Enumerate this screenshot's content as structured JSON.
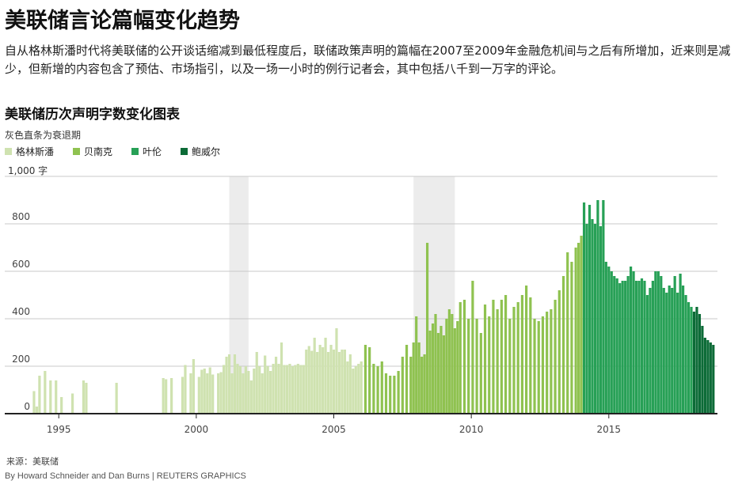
{
  "page": {
    "title": "美联储言论篇幅变化趋势",
    "description": "自从格林斯潘时代将美联储的公开谈话缩减到最低程度后，联储政策声明的篇幅在2007至2009年金融危机间与之后有所增加，近来则是减少，但新增的内容包含了预估、市场指引，以及一场一小时的例行记者会，其中包括八千到一万字的评论。",
    "source": "来源：美联储",
    "credit": "By Howard Schneider and Dan Burns | REUTERS GRAPHICS"
  },
  "chart_data": {
    "type": "bar",
    "title": "美联储历次声明字数变化图表",
    "recession_note": "灰色直条为衰退期",
    "unit_label": "1,000 字",
    "xlabel": "",
    "ylabel": "",
    "xlim": [
      1993.9,
      2018.95
    ],
    "ylim": [
      0,
      1000
    ],
    "y_ticks": [
      0,
      200,
      400,
      600,
      800
    ],
    "x_ticks": [
      1995,
      2000,
      2005,
      2010,
      2015
    ],
    "grid": true,
    "legend_position": "top-left",
    "recessions": [
      [
        2001.2,
        2001.9
      ],
      [
        2007.9,
        2009.4
      ]
    ],
    "series": [
      {
        "name": "格林斯潘",
        "color": "#cfe2b0",
        "x": [
          1994.1,
          1994.2,
          1994.3,
          1994.5,
          1994.7,
          1994.9,
          1995.1,
          1995.5,
          1995.9,
          1996.0,
          1997.1,
          1998.8,
          1998.9,
          1999.1,
          1999.5,
          1999.6,
          1999.8,
          1999.9,
          2000.1,
          2000.2,
          2000.3,
          2000.4,
          2000.5,
          2000.6,
          2000.8,
          2000.9,
          2001.0,
          2001.1,
          2001.2,
          2001.3,
          2001.4,
          2001.5,
          2001.6,
          2001.7,
          2001.8,
          2001.9,
          2002.0,
          2002.1,
          2002.2,
          2002.3,
          2002.4,
          2002.5,
          2002.6,
          2002.7,
          2002.8,
          2002.9,
          2003.0,
          2003.1,
          2003.2,
          2003.3,
          2003.4,
          2003.5,
          2003.6,
          2003.7,
          2003.8,
          2003.9,
          2004.0,
          2004.1,
          2004.2,
          2004.3,
          2004.4,
          2004.5,
          2004.6,
          2004.7,
          2004.8,
          2004.9,
          2005.0,
          2005.1,
          2005.2,
          2005.3,
          2005.4,
          2005.5,
          2005.6,
          2005.7,
          2005.8,
          2005.9,
          2006.0
        ],
        "values": [
          95,
          30,
          160,
          180,
          140,
          140,
          70,
          85,
          140,
          130,
          130,
          150,
          145,
          150,
          155,
          205,
          170,
          230,
          155,
          185,
          190,
          170,
          195,
          165,
          170,
          175,
          205,
          240,
          250,
          170,
          250,
          210,
          200,
          170,
          200,
          180,
          140,
          190,
          260,
          200,
          170,
          245,
          200,
          180,
          210,
          240,
          210,
          300,
          205,
          205,
          210,
          200,
          205,
          210,
          205,
          205,
          270,
          285,
          265,
          320,
          260,
          290,
          280,
          320,
          260,
          290,
          270,
          360,
          260,
          270,
          270,
          220,
          250,
          190,
          200,
          210,
          220
        ]
      },
      {
        "name": "贝南克",
        "color": "#8fc250",
        "x": [
          2006.15,
          2006.3,
          2006.45,
          2006.6,
          2006.75,
          2006.9,
          2007.05,
          2007.2,
          2007.35,
          2007.5,
          2007.65,
          2007.8,
          2007.9,
          2008.0,
          2008.1,
          2008.2,
          2008.3,
          2008.4,
          2008.5,
          2008.6,
          2008.7,
          2008.8,
          2008.9,
          2009.0,
          2009.1,
          2009.2,
          2009.3,
          2009.4,
          2009.5,
          2009.6,
          2009.75,
          2009.9,
          2010.05,
          2010.2,
          2010.35,
          2010.5,
          2010.65,
          2010.8,
          2010.95,
          2011.1,
          2011.25,
          2011.4,
          2011.55,
          2011.7,
          2011.85,
          2012.0,
          2012.15,
          2012.3,
          2012.45,
          2012.6,
          2012.75,
          2012.9,
          2013.05,
          2013.2,
          2013.35,
          2013.5,
          2013.65,
          2013.8,
          2013.9,
          2014.0
        ],
        "values": [
          290,
          280,
          210,
          200,
          220,
          170,
          160,
          160,
          180,
          240,
          290,
          240,
          300,
          410,
          300,
          240,
          250,
          720,
          350,
          380,
          420,
          340,
          370,
          330,
          400,
          440,
          420,
          360,
          390,
          470,
          480,
          400,
          560,
          400,
          340,
          460,
          410,
          480,
          440,
          480,
          500,
          400,
          450,
          470,
          500,
          540,
          490,
          400,
          390,
          410,
          430,
          440,
          480,
          520,
          580,
          680,
          640,
          700,
          720,
          750
        ]
      },
      {
        "name": "叶伦",
        "color": "#27a056",
        "x": [
          2014.1,
          2014.2,
          2014.3,
          2014.4,
          2014.5,
          2014.6,
          2014.7,
          2014.8,
          2014.9,
          2015.0,
          2015.1,
          2015.2,
          2015.3,
          2015.4,
          2015.5,
          2015.6,
          2015.7,
          2015.8,
          2015.9,
          2016.0,
          2016.1,
          2016.2,
          2016.3,
          2016.4,
          2016.5,
          2016.6,
          2016.7,
          2016.8,
          2016.9,
          2017.0,
          2017.1,
          2017.2,
          2017.3,
          2017.4,
          2017.5,
          2017.6,
          2017.7,
          2017.8,
          2017.9,
          2018.0
        ],
        "values": [
          890,
          800,
          880,
          820,
          800,
          900,
          790,
          900,
          640,
          620,
          600,
          580,
          570,
          550,
          560,
          560,
          580,
          620,
          600,
          560,
          560,
          570,
          560,
          500,
          530,
          560,
          600,
          600,
          580,
          530,
          510,
          540,
          530,
          580,
          510,
          590,
          540,
          500,
          470,
          450
        ]
      },
      {
        "name": "鲍威尔",
        "color": "#0c6b37",
        "x": [
          2018.1,
          2018.2,
          2018.3,
          2018.4,
          2018.5,
          2018.6,
          2018.7,
          2018.8
        ],
        "values": [
          430,
          450,
          420,
          370,
          320,
          310,
          300,
          290
        ]
      }
    ]
  }
}
